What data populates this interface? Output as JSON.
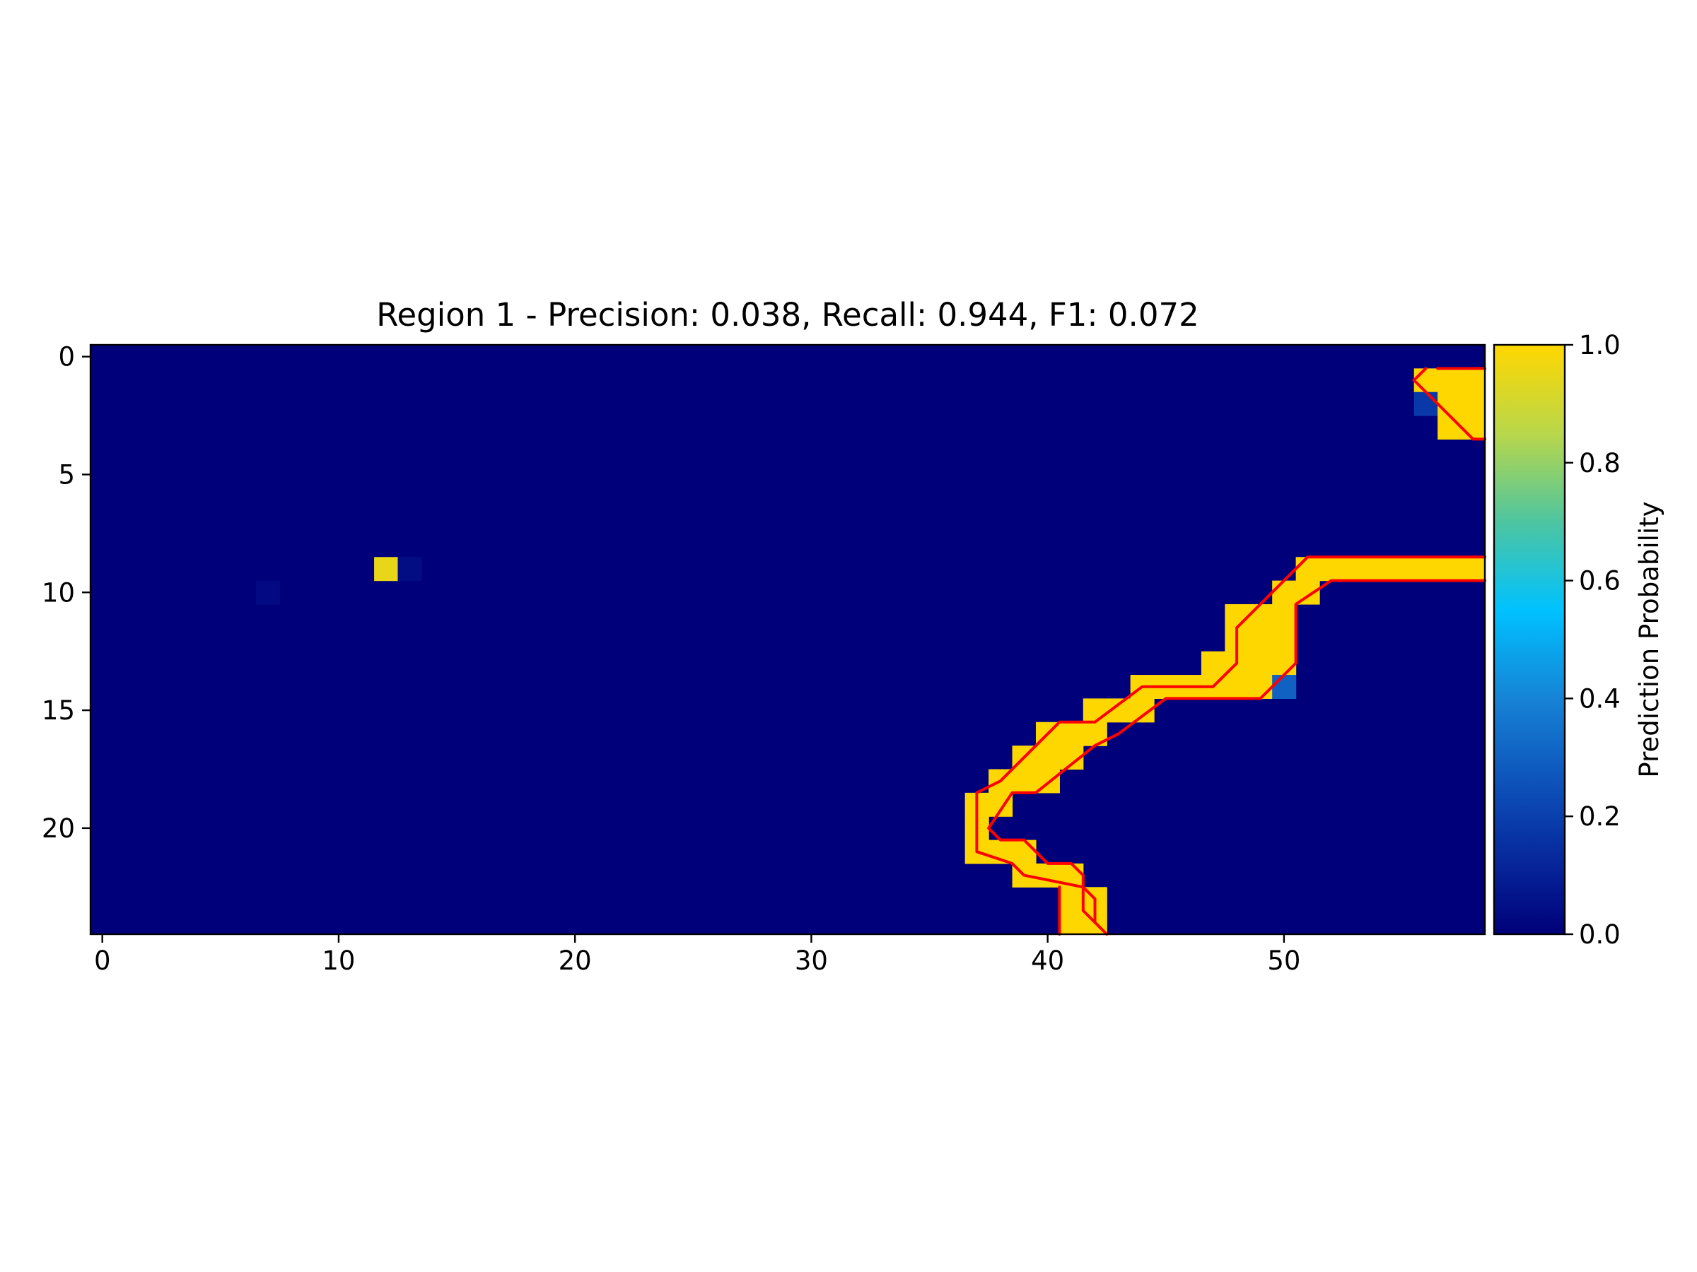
{
  "chart_data": {
    "type": "heatmap",
    "title": "Region 1 - Precision: 0.038, Recall: 0.944, F1: 0.072",
    "xlabel": "",
    "ylabel": "",
    "n_cols": 59,
    "n_rows": 25,
    "xlim": [
      -0.5,
      58.5
    ],
    "ylim": [
      24.5,
      -0.5
    ],
    "x_ticks": [
      0,
      10,
      20,
      30,
      40,
      50
    ],
    "y_ticks": [
      0,
      5,
      10,
      15,
      20
    ],
    "x_tick_labels": [
      "0",
      "10",
      "20",
      "30",
      "40",
      "50"
    ],
    "y_tick_labels": [
      "0",
      "5",
      "10",
      "15",
      "20"
    ],
    "background_value": 0.0,
    "cells": [
      [
        1,
        56,
        1.0
      ],
      [
        1,
        57,
        1.0
      ],
      [
        1,
        58,
        1.0
      ],
      [
        2,
        56,
        0.18
      ],
      [
        2,
        57,
        1.0
      ],
      [
        2,
        58,
        1.0
      ],
      [
        3,
        57,
        1.0
      ],
      [
        3,
        58,
        1.0
      ],
      [
        9,
        12,
        0.95
      ],
      [
        9,
        13,
        0.04
      ],
      [
        9,
        51,
        1.0
      ],
      [
        9,
        52,
        1.0
      ],
      [
        9,
        53,
        1.0
      ],
      [
        9,
        54,
        1.0
      ],
      [
        9,
        55,
        1.0
      ],
      [
        9,
        56,
        1.0
      ],
      [
        9,
        57,
        1.0
      ],
      [
        9,
        58,
        1.0
      ],
      [
        10,
        7,
        0.03
      ],
      [
        10,
        50,
        1.0
      ],
      [
        10,
        51,
        1.0
      ],
      [
        11,
        48,
        1.0
      ],
      [
        11,
        49,
        1.0
      ],
      [
        11,
        50,
        1.0
      ],
      [
        12,
        48,
        1.0
      ],
      [
        12,
        49,
        1.0
      ],
      [
        12,
        50,
        1.0
      ],
      [
        13,
        47,
        1.0
      ],
      [
        13,
        48,
        1.0
      ],
      [
        13,
        49,
        1.0
      ],
      [
        13,
        50,
        1.0
      ],
      [
        14,
        44,
        1.0
      ],
      [
        14,
        45,
        1.0
      ],
      [
        14,
        46,
        1.0
      ],
      [
        14,
        47,
        1.0
      ],
      [
        14,
        48,
        1.0
      ],
      [
        14,
        49,
        1.0
      ],
      [
        14,
        50,
        0.3
      ],
      [
        15,
        42,
        1.0
      ],
      [
        15,
        43,
        1.0
      ],
      [
        15,
        44,
        1.0
      ],
      [
        16,
        40,
        1.0
      ],
      [
        16,
        41,
        1.0
      ],
      [
        16,
        42,
        1.0
      ],
      [
        17,
        39,
        1.0
      ],
      [
        17,
        40,
        1.0
      ],
      [
        17,
        41,
        1.0
      ],
      [
        18,
        38,
        1.0
      ],
      [
        18,
        39,
        1.0
      ],
      [
        18,
        40,
        1.0
      ],
      [
        19,
        37,
        1.0
      ],
      [
        19,
        38,
        1.0
      ],
      [
        20,
        37,
        1.0
      ],
      [
        21,
        37,
        1.0
      ],
      [
        21,
        38,
        1.0
      ],
      [
        21,
        39,
        1.0
      ],
      [
        22,
        39,
        1.0
      ],
      [
        22,
        40,
        1.0
      ],
      [
        22,
        41,
        1.0
      ],
      [
        23,
        41,
        1.0
      ],
      [
        23,
        42,
        1.0
      ],
      [
        24,
        41,
        1.0
      ],
      [
        24,
        42,
        1.0
      ]
    ],
    "contours": [
      [
        [
          56.5,
          0.5
        ],
        [
          58.5,
          0.5
        ]
      ],
      [
        [
          55.5,
          1.0
        ],
        [
          56.0,
          0.5
        ]
      ],
      [
        [
          55.5,
          1.0
        ],
        [
          58.0,
          3.5
        ],
        [
          58.5,
          3.5
        ]
      ],
      [
        [
          58.5,
          8.5
        ],
        [
          51.0,
          8.5
        ],
        [
          48.0,
          11.5
        ],
        [
          48.0,
          13.0
        ],
        [
          47.0,
          14.0
        ],
        [
          44.0,
          14.0
        ],
        [
          42.0,
          15.5
        ],
        [
          40.5,
          15.5
        ],
        [
          38.0,
          18.0
        ],
        [
          37.0,
          18.5
        ],
        [
          37.0,
          21.0
        ],
        [
          38.5,
          21.5
        ],
        [
          39.0,
          22.0
        ],
        [
          41.5,
          22.5
        ],
        [
          41.5,
          23.5
        ],
        [
          42.5,
          24.5
        ]
      ],
      [
        [
          58.5,
          9.5
        ],
        [
          52.0,
          9.5
        ],
        [
          50.5,
          10.5
        ],
        [
          50.5,
          13.0
        ],
        [
          49.0,
          14.5
        ],
        [
          45.0,
          14.5
        ],
        [
          43.0,
          16.0
        ],
        [
          42.0,
          16.5
        ],
        [
          39.5,
          18.5
        ],
        [
          38.5,
          18.5
        ],
        [
          37.5,
          20.0
        ],
        [
          38.0,
          20.5
        ],
        [
          39.0,
          20.5
        ],
        [
          40.0,
          21.5
        ],
        [
          41.0,
          21.5
        ],
        [
          41.5,
          22.0
        ],
        [
          41.5,
          22.5
        ],
        [
          42.0,
          23.0
        ],
        [
          42.0,
          24.0
        ]
      ],
      [
        [
          40.5,
          22.5
        ],
        [
          40.5,
          24.5
        ]
      ]
    ],
    "contour_color": "#ff0000",
    "colorbar": {
      "label": "Prediction Probability",
      "min": 0.0,
      "max": 1.0,
      "ticks": [
        "0.0",
        "0.2",
        "0.4",
        "0.6",
        "0.8",
        "1.0"
      ],
      "tick_values": [
        0.0,
        0.2,
        0.4,
        0.6,
        0.8,
        1.0
      ]
    },
    "colormap_stops": [
      [
        0.0,
        "#00007a"
      ],
      [
        0.2,
        "#0a3fae"
      ],
      [
        0.4,
        "#1683d6"
      ],
      [
        0.55,
        "#00c2ff"
      ],
      [
        0.7,
        "#4ec5a0"
      ],
      [
        0.85,
        "#b9d74a"
      ],
      [
        1.0,
        "#ffd700"
      ]
    ]
  }
}
